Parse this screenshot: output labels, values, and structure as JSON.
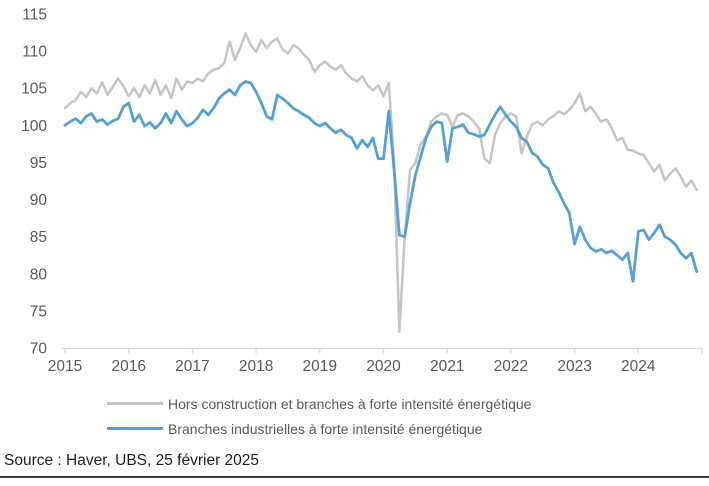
{
  "source_line": "Source : Haver, UBS, 25 février 2025",
  "colors": {
    "gray_series": "#c5c5c5",
    "blue_series": "#55a0d4",
    "axis_line": "#d9d9d9",
    "tick_label": "#595959",
    "source_text": "#1f1f1f",
    "bottom_rule": "#3c3c3c",
    "background": "#ffffff"
  },
  "chart_data": {
    "type": "line",
    "title": "",
    "xlabel": "",
    "ylabel": "",
    "grid": false,
    "legend_position": "bottom",
    "ylim": [
      70,
      115
    ],
    "yticks": [
      70,
      75,
      80,
      85,
      90,
      95,
      100,
      105,
      110,
      115
    ],
    "x_start": "2015-01",
    "x_end": "2024-12",
    "x_frequency": "monthly",
    "xtick_year_labels": [
      "2015",
      "2016",
      "2017",
      "2018",
      "2019",
      "2020",
      "2021",
      "2022",
      "2023",
      "2024"
    ],
    "series": [
      {
        "name": "Hors construction et branches à forte intensité énergétique",
        "color": "#c5c5c5",
        "stroke_width": 2.5,
        "values": [
          102.3,
          103.0,
          103.4,
          104.5,
          103.8,
          105.0,
          104.3,
          105.8,
          104.1,
          105.2,
          106.3,
          105.3,
          103.9,
          105.0,
          103.8,
          105.4,
          104.3,
          106.1,
          104.1,
          105.4,
          103.7,
          106.3,
          104.8,
          105.9,
          105.7,
          106.3,
          105.9,
          107.0,
          107.5,
          107.7,
          108.4,
          111.3,
          108.8,
          110.4,
          112.4,
          110.8,
          109.9,
          111.5,
          110.4,
          111.3,
          111.7,
          110.2,
          109.7,
          110.8,
          110.4,
          109.5,
          108.8,
          107.2,
          108.1,
          108.6,
          107.9,
          107.5,
          108.1,
          107.0,
          106.3,
          105.9,
          106.6,
          105.4,
          104.7,
          105.4,
          103.9,
          105.7,
          95.0,
          72.2,
          85.0,
          94.0,
          94.9,
          97.5,
          98.5,
          100.5,
          101.2,
          101.6,
          101.4,
          99.8,
          101.4,
          101.6,
          101.2,
          100.5,
          99.6,
          95.5,
          94.9,
          98.7,
          100.3,
          101.2,
          101.6,
          101.2,
          96.2,
          98.5,
          100.1,
          100.5,
          100.0,
          100.8,
          101.2,
          101.9,
          101.5,
          102.1,
          103.0,
          104.3,
          101.9,
          102.5,
          101.6,
          100.5,
          100.8,
          99.6,
          98.0,
          98.3,
          96.7,
          96.6,
          96.2,
          96.0,
          94.9,
          93.8,
          94.7,
          92.6,
          93.5,
          94.2,
          93.1,
          91.7,
          92.6,
          91.3
        ]
      },
      {
        "name": "Branches industrielles à forte intensité énergétique",
        "color": "#55a0d4",
        "stroke_width": 2.8,
        "values": [
          100.0,
          100.5,
          100.9,
          100.3,
          101.2,
          101.6,
          100.5,
          100.8,
          100.1,
          100.6,
          100.9,
          102.5,
          103.0,
          100.5,
          101.4,
          99.9,
          100.4,
          99.6,
          100.3,
          101.6,
          100.3,
          101.9,
          100.8,
          99.9,
          100.3,
          101.0,
          102.1,
          101.4,
          102.3,
          103.6,
          104.3,
          104.8,
          104.1,
          105.4,
          105.9,
          105.7,
          104.5,
          103.0,
          101.2,
          100.8,
          104.1,
          103.6,
          103.0,
          102.3,
          101.9,
          101.4,
          101.0,
          100.3,
          99.9,
          100.3,
          99.6,
          99.0,
          99.4,
          98.7,
          98.3,
          96.9,
          98.0,
          97.1,
          98.3,
          95.5,
          95.5,
          101.9,
          94.0,
          85.2,
          85.0,
          89.5,
          93.3,
          95.8,
          98.3,
          99.8,
          100.5,
          100.3,
          95.1,
          99.6,
          99.8,
          100.1,
          99.0,
          98.8,
          98.5,
          98.7,
          100.1,
          101.4,
          102.5,
          101.4,
          100.5,
          99.8,
          98.3,
          97.8,
          96.3,
          95.8,
          94.7,
          94.2,
          92.3,
          91.0,
          89.5,
          88.2,
          84.0,
          86.3,
          84.6,
          83.5,
          83.0,
          83.3,
          82.8,
          83.1,
          82.5,
          81.9,
          82.8,
          79.0,
          85.7,
          85.9,
          84.6,
          85.5,
          86.6,
          85.0,
          84.6,
          83.9,
          82.8,
          82.1,
          82.8,
          80.3
        ]
      }
    ]
  }
}
